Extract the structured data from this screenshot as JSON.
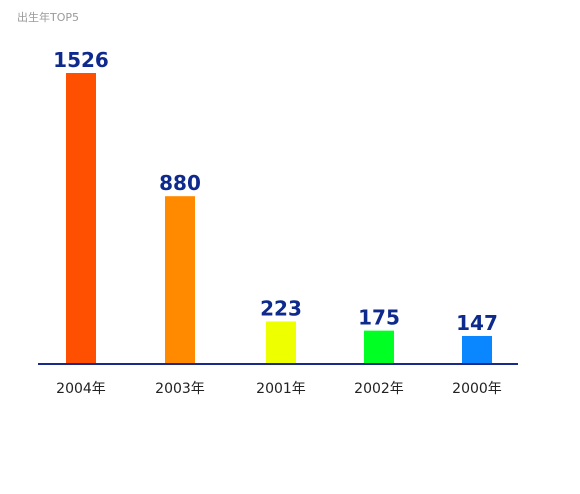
{
  "title": "出生年TOP5",
  "colors": {
    "axis": "#1a2a8a",
    "value_label": "#0d2a8c",
    "bars": [
      "#ff4f00",
      "#ff8a00",
      "#eeff00",
      "#00ff22",
      "#0a86ff"
    ]
  },
  "chart_data": {
    "type": "bar",
    "title": "出生年TOP5",
    "categories": [
      "2004年",
      "2003年",
      "2001年",
      "2002年",
      "2000年"
    ],
    "values": [
      1526,
      880,
      223,
      175,
      147
    ],
    "xlabel": "",
    "ylabel": "",
    "ylim": [
      0,
      1526
    ],
    "grid": false
  }
}
